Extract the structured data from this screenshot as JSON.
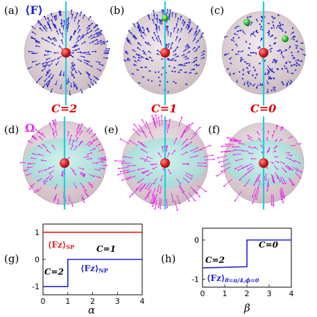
{
  "spheres": {
    "top_row": {
      "label_a": "(a)",
      "label_b": "(b)",
      "label_c": "(c)",
      "legend": "⟨F⟩",
      "vector_color": "#1f1fd0",
      "chern_a": "C=2",
      "chern_b": "C=1",
      "chern_c": "C=0"
    },
    "bottom_row": {
      "label_d": "(d)",
      "label_e": "(e)",
      "label_f": "(f)",
      "legend": "Ω",
      "vector_color": "#ee22ee"
    },
    "colors": {
      "axis": "#22ccdd",
      "core": "#dd2222",
      "marker": "#22bb22",
      "shell": "#d8c8cc",
      "inner": "#b8ece8"
    }
  },
  "chart_data": [
    {
      "type": "line",
      "panel": "(g)",
      "xlabel": "α",
      "xlim": [
        0,
        4
      ],
      "ylim": [
        -1.3,
        1.3
      ],
      "xticks": [
        "0",
        "1",
        "2",
        "3",
        "4"
      ],
      "yticks": [
        "-1",
        "0",
        "1"
      ],
      "series": [
        {
          "name": "⟨Fz⟩SP",
          "color": "#e02020",
          "x": [
            0,
            4
          ],
          "y": [
            1,
            1
          ]
        },
        {
          "name": "⟨Fz⟩NP",
          "color": "#1f1fd0",
          "x": [
            0,
            1,
            1,
            4
          ],
          "y": [
            -1,
            -1,
            0,
            0
          ]
        }
      ],
      "annotations": {
        "sp_main": "⟨Fz⟩",
        "sp_sub": "SP",
        "np_main": "⟨Fz⟩",
        "np_sub": "NP",
        "c1": "C=1",
        "c2": "C=2"
      }
    },
    {
      "type": "line",
      "panel": "(h)",
      "xlabel": "β",
      "xlim": [
        0,
        4
      ],
      "ylim": [
        -1.2,
        0.3
      ],
      "xticks": [
        "0",
        "1",
        "2",
        "3",
        "4"
      ],
      "yticks": [
        "-1",
        "0"
      ],
      "series": [
        {
          "name": "⟨Fz⟩θ=π/4,ϕ=0",
          "color": "#1f1fd0",
          "x": [
            0,
            2,
            2,
            4
          ],
          "y": [
            -0.71,
            -0.68,
            0,
            0
          ]
        }
      ],
      "annotations": {
        "main": "⟨Fz⟩",
        "sub": "θ=π/4,ϕ=0",
        "c2": "C=2",
        "c0": "C=0"
      }
    }
  ]
}
